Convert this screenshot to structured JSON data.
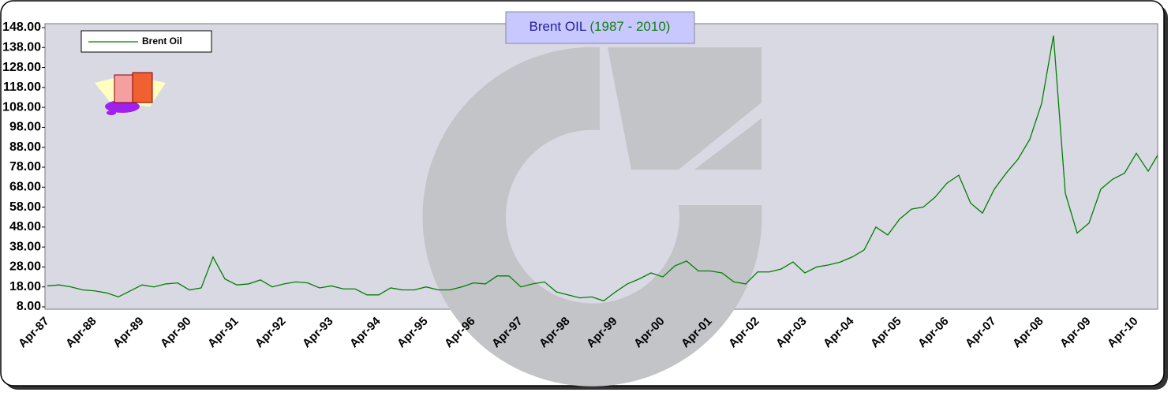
{
  "chart_data": {
    "type": "line",
    "title": "Brent OIL",
    "title_years": "(1987 - 2010)",
    "categories": [
      "Apr-87",
      null,
      null,
      null,
      "Apr-88",
      null,
      null,
      null,
      "Apr-89",
      null,
      null,
      null,
      "Apr-90",
      null,
      null,
      null,
      "Apr-91",
      null,
      null,
      null,
      "Apr-92",
      null,
      null,
      null,
      "Apr-93",
      null,
      null,
      null,
      "Apr-94",
      null,
      null,
      null,
      "Apr-95",
      null,
      null,
      null,
      "Apr-96",
      null,
      null,
      null,
      "Apr-97",
      null,
      null,
      null,
      "Apr-98",
      null,
      null,
      null,
      "Apr-99",
      null,
      null,
      null,
      "Apr-00",
      null,
      null,
      null,
      "Apr-01",
      null,
      null,
      null,
      "Apr-02",
      null,
      null,
      null,
      "Apr-03",
      null,
      null,
      null,
      "Apr-04",
      null,
      null,
      null,
      "Apr-05",
      null,
      null,
      null,
      "Apr-06",
      null,
      null,
      null,
      "Apr-07",
      null,
      null,
      null,
      "Apr-08",
      null,
      null,
      null,
      "Apr-09",
      null,
      null,
      null,
      "Apr-10",
      null,
      null
    ],
    "series": [
      {
        "name": "Brent Oil",
        "color": "#008000",
        "values": [
          18.5,
          19,
          18,
          16.5,
          16,
          15,
          13,
          16,
          19,
          18,
          19.5,
          20,
          16.5,
          17.5,
          33,
          22,
          19,
          19.5,
          21.5,
          18,
          19.5,
          20.5,
          20,
          17.5,
          18.5,
          17,
          17,
          14,
          14,
          17.5,
          16.5,
          16.5,
          18,
          16.5,
          16.5,
          18,
          20,
          19.5,
          23.5,
          23.5,
          18,
          19.5,
          20.5,
          15.5,
          14,
          12.5,
          13,
          11,
          15.5,
          19.5,
          22,
          25,
          23,
          28.5,
          31,
          26,
          26,
          25,
          20.5,
          19.5,
          25.5,
          25.5,
          27,
          30.5,
          25,
          28,
          29,
          30.5,
          33,
          36.5,
          48,
          44,
          52,
          57,
          58,
          63,
          70,
          74,
          60,
          55,
          67,
          75,
          82,
          92,
          110,
          144,
          65,
          45,
          50,
          67,
          72,
          75,
          85,
          76,
          86
        ]
      }
    ],
    "ylim": [
      8,
      148
    ],
    "yticks": [
      {
        "value": 8,
        "label": "8.00"
      },
      {
        "value": 18,
        "label": "18.00"
      },
      {
        "value": 28,
        "label": "28.00"
      },
      {
        "value": 38,
        "label": "38.00"
      },
      {
        "value": 48,
        "label": "48.00"
      },
      {
        "value": 58,
        "label": "58.00"
      },
      {
        "value": 68,
        "label": "68.00"
      },
      {
        "value": 78,
        "label": "78.00"
      },
      {
        "value": 88,
        "label": "88.00"
      },
      {
        "value": 98,
        "label": "98.00"
      },
      {
        "value": 108,
        "label": "108.00"
      },
      {
        "value": 118,
        "label": "118.00"
      },
      {
        "value": 128,
        "label": "128.00"
      },
      {
        "value": 138,
        "label": "138.00"
      },
      {
        "value": 148,
        "label": "148.00"
      }
    ],
    "legend": "top-left"
  }
}
